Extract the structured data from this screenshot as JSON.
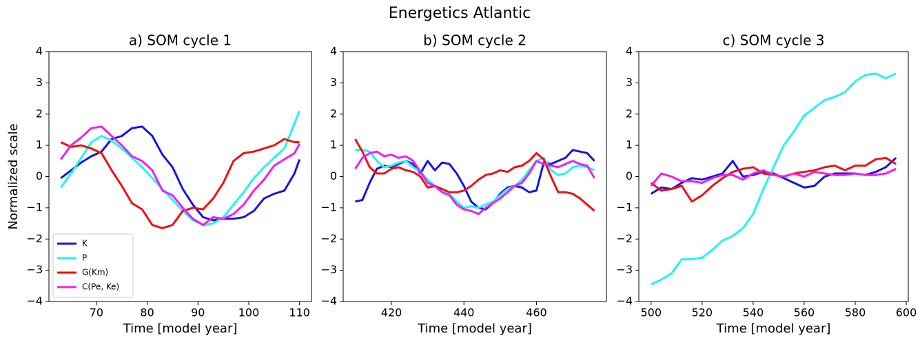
{
  "title": "Energetics Atlantic",
  "chart_data": [
    {
      "type": "line",
      "title": "a) SOM cycle 1",
      "xlabel": "Time [model year]",
      "ylabel": "Normalized scale",
      "x": [
        63,
        65,
        67,
        69,
        71,
        73,
        75,
        77,
        79,
        81,
        83,
        85,
        87,
        89,
        91,
        93,
        95,
        97,
        99,
        101,
        103,
        105,
        107,
        109,
        110
      ],
      "series": [
        {
          "name": "K",
          "color": "#1414e6",
          "values": [
            -0.05,
            0.2,
            0.45,
            0.65,
            0.8,
            1.2,
            1.3,
            1.55,
            1.6,
            1.3,
            0.7,
            0.3,
            -0.4,
            -0.9,
            -1.3,
            -1.4,
            -1.35,
            -1.35,
            -1.3,
            -1.1,
            -0.7,
            -0.55,
            -0.45,
            0.1,
            0.55
          ]
        },
        {
          "name": "P",
          "color": "#1ff5f5",
          "values": [
            -0.35,
            0.1,
            0.6,
            1.1,
            1.3,
            1.15,
            0.9,
            0.6,
            0.3,
            -0.05,
            -0.4,
            -0.75,
            -1.1,
            -1.4,
            -1.55,
            -1.5,
            -1.3,
            -0.9,
            -0.5,
            -0.05,
            0.3,
            0.6,
            0.9,
            1.7,
            2.1
          ]
        },
        {
          "name": "G(Km)",
          "color": "#ee1111",
          "values": [
            1.1,
            0.95,
            1.0,
            0.9,
            0.75,
            0.2,
            -0.3,
            -0.85,
            -1.05,
            -1.55,
            -1.65,
            -1.55,
            -1.1,
            -1.0,
            -1.05,
            -0.7,
            -0.2,
            0.5,
            0.75,
            0.8,
            0.9,
            1.0,
            1.2,
            1.1,
            1.1
          ]
        },
        {
          "name": "C(Pe, Ke)",
          "color": "#f01ef0",
          "values": [
            0.55,
            1.0,
            1.25,
            1.55,
            1.6,
            1.3,
            1.0,
            0.65,
            0.5,
            0.2,
            -0.45,
            -0.6,
            -1.0,
            -1.35,
            -1.55,
            -1.3,
            -1.35,
            -1.2,
            -0.9,
            -0.45,
            -0.1,
            0.35,
            0.55,
            0.75,
            1.05
          ]
        }
      ],
      "xlim": [
        60.65,
        112.35
      ],
      "ylim": [
        -4,
        4
      ],
      "xticks": [
        70,
        80,
        90,
        100,
        110
      ],
      "yticks": [
        {
          "value": -4,
          "label": "−4"
        },
        {
          "value": -3,
          "label": "−3"
        },
        {
          "value": -2,
          "label": "−2"
        },
        {
          "value": -1,
          "label": "−1"
        },
        0,
        1,
        2,
        3,
        4
      ],
      "legend": "lower left"
    },
    {
      "type": "line",
      "title": "b) SOM cycle 2",
      "xlabel": "Time [model year]",
      "x": [
        410,
        412,
        414,
        416,
        418,
        420,
        422,
        424,
        426,
        428,
        430,
        432,
        434,
        436,
        438,
        440,
        442,
        444,
        446,
        448,
        450,
        452,
        454,
        456,
        458,
        460,
        462,
        464,
        466,
        468,
        470,
        472,
        474,
        476
      ],
      "series": [
        {
          "color": "#1414e6",
          "values": [
            -0.8,
            -0.75,
            -0.2,
            0.25,
            0.35,
            0.3,
            0.4,
            0.5,
            0.4,
            0.1,
            0.5,
            0.2,
            0.45,
            0.4,
            0.1,
            -0.3,
            -0.8,
            -1.0,
            -1.05,
            -0.85,
            -0.55,
            -0.35,
            -0.3,
            -0.35,
            -0.5,
            -0.45,
            0.45,
            0.4,
            0.5,
            0.6,
            0.85,
            0.8,
            0.75,
            0.5
          ]
        },
        {
          "color": "#1ff5f5",
          "values": [
            0.85,
            0.85,
            0.8,
            0.5,
            0.3,
            0.35,
            0.45,
            0.5,
            0.3,
            0.15,
            -0.1,
            -0.3,
            -0.4,
            -0.55,
            -0.8,
            -1.0,
            -0.95,
            -1.0,
            -0.9,
            -0.8,
            -0.6,
            -0.4,
            -0.3,
            -0.1,
            0.2,
            0.5,
            0.6,
            0.2,
            0.05,
            0.1,
            0.3,
            0.35,
            0.3,
            0.2
          ]
        },
        {
          "color": "#ee1111",
          "values": [
            1.2,
            0.8,
            0.3,
            0.1,
            0.1,
            0.25,
            0.3,
            0.2,
            0.15,
            0.0,
            -0.35,
            -0.3,
            -0.4,
            -0.5,
            -0.5,
            -0.45,
            -0.3,
            -0.1,
            0.05,
            0.1,
            0.2,
            0.15,
            0.3,
            0.35,
            0.5,
            0.75,
            0.55,
            0.0,
            -0.5,
            -0.5,
            -0.55,
            -0.7,
            -0.9,
            -1.1
          ]
        },
        {
          "color": "#f01ef0",
          "values": [
            0.25,
            0.6,
            0.75,
            0.8,
            0.65,
            0.7,
            0.6,
            0.65,
            0.5,
            0.15,
            -0.2,
            -0.3,
            -0.5,
            -0.6,
            -0.9,
            -1.05,
            -1.1,
            -1.2,
            -1.0,
            -0.85,
            -0.7,
            -0.5,
            -0.3,
            -0.2,
            0.1,
            0.5,
            0.4,
            0.35,
            0.3,
            0.4,
            0.5,
            0.4,
            0.35,
            -0.05
          ]
        }
      ],
      "xlim": [
        406.7,
        479.3
      ],
      "ylim": [
        -4,
        4
      ],
      "xticks": [
        420,
        440,
        460
      ],
      "yticks": [
        {
          "value": -4,
          "label": "−4"
        },
        {
          "value": -3,
          "label": "−3"
        },
        {
          "value": -2,
          "label": "−2"
        },
        {
          "value": -1,
          "label": "−1"
        },
        0,
        1,
        2,
        3,
        4
      ]
    },
    {
      "type": "line",
      "title": "c) SOM cycle 3",
      "xlabel": "Time [model year]",
      "x": [
        500,
        504,
        508,
        512,
        516,
        520,
        524,
        528,
        532,
        536,
        540,
        544,
        548,
        552,
        556,
        560,
        564,
        568,
        572,
        576,
        580,
        584,
        588,
        592,
        596
      ],
      "series": [
        {
          "color": "#1414e6",
          "values": [
            -0.55,
            -0.35,
            -0.4,
            -0.2,
            -0.05,
            -0.1,
            0.0,
            0.1,
            0.5,
            0.0,
            0.05,
            0.15,
            0.1,
            -0.05,
            -0.2,
            -0.35,
            -0.3,
            0.0,
            0.1,
            0.1,
            0.1,
            0.05,
            0.15,
            0.3,
            0.6
          ]
        },
        {
          "color": "#1ff5f5",
          "values": [
            -3.45,
            -3.3,
            -3.1,
            -2.65,
            -2.65,
            -2.6,
            -2.35,
            -2.05,
            -1.9,
            -1.65,
            -1.2,
            -0.4,
            0.3,
            1.0,
            1.45,
            1.95,
            2.2,
            2.45,
            2.55,
            2.7,
            3.05,
            3.25,
            3.3,
            3.15,
            3.3
          ]
        },
        {
          "color": "#ee1111",
          "values": [
            -0.2,
            -0.45,
            -0.4,
            -0.3,
            -0.8,
            -0.6,
            -0.3,
            -0.05,
            0.15,
            0.25,
            0.3,
            0.1,
            0.05,
            0.0,
            0.1,
            0.15,
            0.2,
            0.3,
            0.35,
            0.2,
            0.35,
            0.35,
            0.55,
            0.6,
            0.4
          ]
        },
        {
          "color": "#f01ef0",
          "values": [
            -0.3,
            0.1,
            0.0,
            -0.15,
            -0.15,
            -0.2,
            -0.05,
            0.05,
            0.05,
            -0.1,
            0.1,
            0.2,
            0.05,
            0.0,
            0.1,
            0.0,
            0.15,
            0.1,
            0.05,
            0.05,
            0.1,
            0.05,
            0.05,
            0.1,
            0.25
          ]
        }
      ],
      "xlim": [
        495.2,
        600.8
      ],
      "ylim": [
        -4,
        4
      ],
      "xticks": [
        500,
        520,
        540,
        560,
        580,
        600
      ],
      "yticks": [
        {
          "value": -4,
          "label": "−4"
        },
        {
          "value": -3,
          "label": "−3"
        },
        {
          "value": -2,
          "label": "−2"
        },
        {
          "value": -1,
          "label": "−1"
        },
        0,
        1,
        2,
        3,
        4
      ]
    }
  ]
}
